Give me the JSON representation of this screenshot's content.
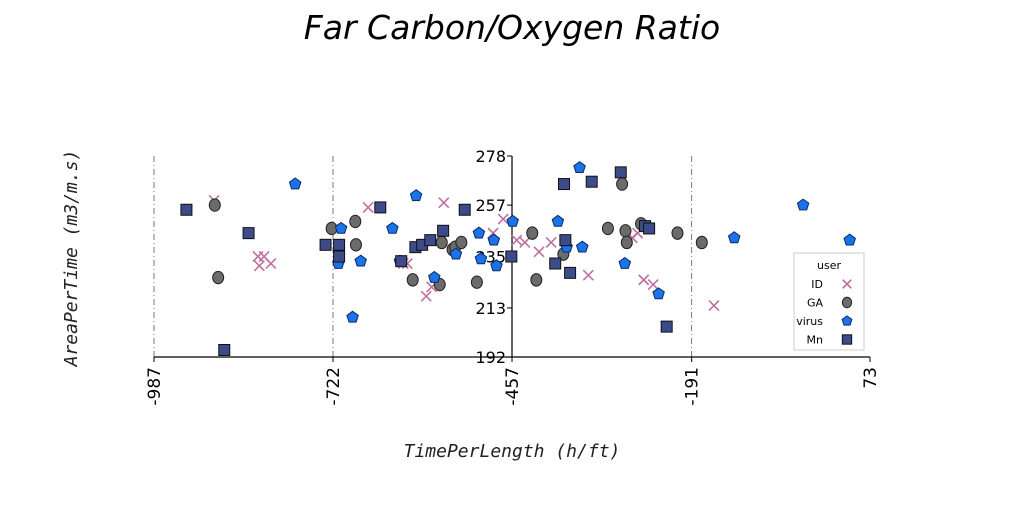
{
  "chart_data": {
    "type": "scatter",
    "title": "Far Carbon/Oxygen Ratio",
    "xlabel": "TimePerLength (h/ft)",
    "ylabel": "AreaPerTime (m3/m.s)",
    "xlim": [
      -987,
      73
    ],
    "ylim": [
      192,
      278
    ],
    "x_ticks": [
      -987,
      -722,
      -457,
      -191,
      73
    ],
    "y_ticks": [
      192,
      213,
      235,
      257,
      278
    ],
    "vlines": [
      -987,
      -722,
      -191
    ],
    "legend": {
      "title": "user",
      "placement": "right"
    },
    "series": [
      {
        "name": "ID",
        "marker": "x",
        "color": "#c070a0",
        "points": [
          [
            -898,
            259
          ],
          [
            -833,
            235
          ],
          [
            -831,
            231
          ],
          [
            -824,
            235
          ],
          [
            -814,
            232
          ],
          [
            -670,
            256
          ],
          [
            -618,
            232
          ],
          [
            -612,
            232
          ],
          [
            -584,
            218
          ],
          [
            -576,
            222
          ],
          [
            -558,
            258
          ],
          [
            -485,
            245
          ],
          [
            -470,
            251
          ],
          [
            -450,
            242
          ],
          [
            -438,
            241
          ],
          [
            -417,
            237
          ],
          [
            -399,
            241
          ],
          [
            -344,
            227
          ],
          [
            -279,
            243
          ],
          [
            -271,
            245
          ],
          [
            -262,
            225
          ],
          [
            -248,
            223
          ],
          [
            -158,
            214
          ]
        ]
      },
      {
        "name": "GA",
        "marker": "o",
        "color": "#6b6b6b",
        "points": [
          [
            -897,
            257
          ],
          [
            -892,
            226
          ],
          [
            -724,
            247
          ],
          [
            -689,
            250
          ],
          [
            -688,
            240
          ],
          [
            -604,
            225
          ],
          [
            -564,
            223
          ],
          [
            -561,
            241
          ],
          [
            -545,
            238
          ],
          [
            -541,
            239
          ],
          [
            -532,
            241
          ],
          [
            -509,
            224
          ],
          [
            -427,
            245
          ],
          [
            -421,
            225
          ],
          [
            -381,
            236
          ],
          [
            -315,
            247
          ],
          [
            -294,
            266
          ],
          [
            -289,
            246
          ],
          [
            -287,
            241
          ],
          [
            -266,
            249
          ],
          [
            -212,
            245
          ],
          [
            -176,
            241
          ]
        ]
      },
      {
        "name": "virus",
        "marker": "pentagon",
        "color": "#1a73e8",
        "points": [
          [
            -778,
            266
          ],
          [
            -710,
            247
          ],
          [
            -714,
            232
          ],
          [
            -681,
            233
          ],
          [
            -693,
            209
          ],
          [
            -634,
            247
          ],
          [
            -623,
            233
          ],
          [
            -599,
            261
          ],
          [
            -572,
            226
          ],
          [
            -540,
            236
          ],
          [
            -506,
            245
          ],
          [
            -503,
            234
          ],
          [
            -480,
            231
          ],
          [
            -484,
            242
          ],
          [
            -456,
            250
          ],
          [
            -389,
            250
          ],
          [
            -376,
            239
          ],
          [
            -353,
            239
          ],
          [
            -357,
            273
          ],
          [
            -290,
            232
          ],
          [
            -240,
            219
          ],
          [
            -128,
            243
          ],
          [
            -26,
            257
          ],
          [
            43,
            242
          ]
        ]
      },
      {
        "name": "Mn",
        "marker": "s",
        "color": "#3d4b8a",
        "points": [
          [
            -939,
            255
          ],
          [
            -883,
            195
          ],
          [
            -847,
            245
          ],
          [
            -733,
            240
          ],
          [
            -713,
            235
          ],
          [
            -713,
            240
          ],
          [
            -652,
            256
          ],
          [
            -621,
            233
          ],
          [
            -600,
            239
          ],
          [
            -590,
            240
          ],
          [
            -578,
            242
          ],
          [
            -559,
            246
          ],
          [
            -527,
            255
          ],
          [
            -458,
            235
          ],
          [
            -393,
            232
          ],
          [
            -380,
            266
          ],
          [
            -378,
            242
          ],
          [
            -371,
            228
          ],
          [
            -339,
            267
          ],
          [
            -296,
            271
          ],
          [
            -260,
            248
          ],
          [
            -254,
            247
          ],
          [
            -228,
            205
          ]
        ]
      }
    ]
  }
}
